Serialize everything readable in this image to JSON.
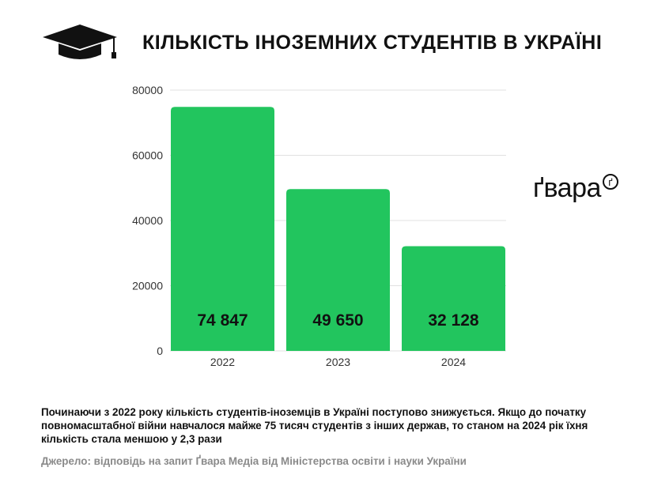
{
  "title": "КІЛЬКІСТЬ ІНОЗЕМНИХ СТУДЕНТІВ В УКРАЇНІ",
  "icon": "graduation-cap-icon",
  "logo": {
    "text": "ґвара",
    "badge": "ґ"
  },
  "description": "Починаючи з 2022 року кількість студентів-іноземців в Україні поступово знижується. Якщо до початку повномасштабної війни навчалося майже 75 тисяч студентів з інших держав, то станом на 2024 рік їхня кількість стала меншою у 2,3 рази",
  "source": "Джерело: відповідь на запит Ґвара Медіа від Міністерства освіти і науки України",
  "colors": {
    "bar": "#22c55e",
    "grid": "#e0e0e0",
    "text": "#111111",
    "muted": "#8a8a8a"
  },
  "chart_data": {
    "type": "bar",
    "categories": [
      "2022",
      "2023",
      "2024"
    ],
    "values": [
      74847,
      49650,
      32128
    ],
    "value_labels": [
      "74 847",
      "49 650",
      "32 128"
    ],
    "yticks": [
      "0",
      "20000",
      "40000",
      "60000",
      "80000"
    ],
    "ylim": [
      0,
      80000
    ],
    "grid": true
  }
}
